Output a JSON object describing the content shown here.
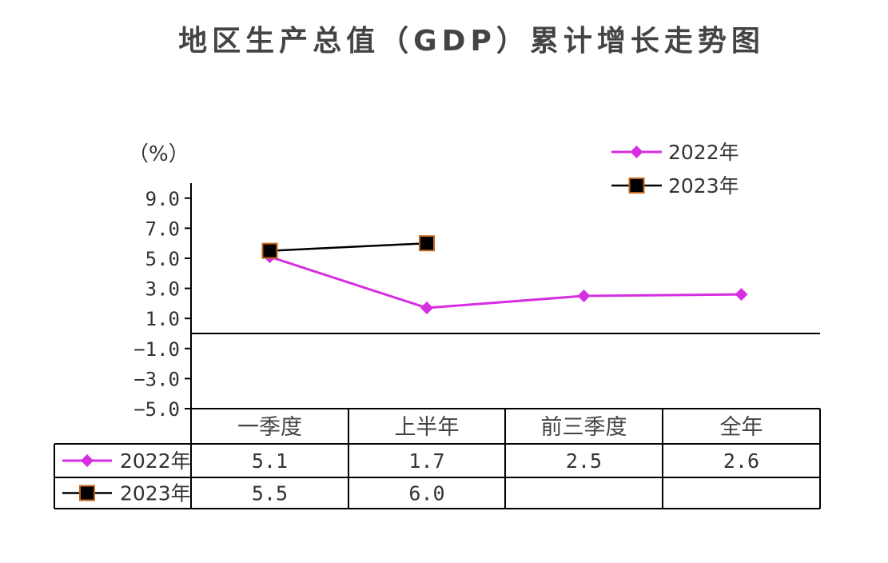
{
  "title": "地区生产总值（GDP）累计增长走势图",
  "unit_label": "（%）",
  "colors": {
    "s2022": "#d62ee0",
    "s2023": "#000000",
    "marker_edge": "#c0631c"
  },
  "chart_data": {
    "type": "line",
    "categories": [
      "一季度",
      "上半年",
      "前三季度",
      "全年"
    ],
    "y_ticks": [
      "9.0",
      "7.0",
      "5.0",
      "3.0",
      "1.0",
      "−1.0",
      "−3.0",
      "−5.0"
    ],
    "ylim": [
      -5,
      10
    ],
    "legend_position": "top-right",
    "series": [
      {
        "name": "2022年",
        "values": [
          5.1,
          1.7,
          2.5,
          2.6
        ],
        "labels": [
          "5.1",
          "1.7",
          "2.5",
          "2.6"
        ],
        "marker": "diamond"
      },
      {
        "name": "2023年",
        "values": [
          5.5,
          6.0,
          null,
          null
        ],
        "labels": [
          "5.5",
          "6.0",
          "",
          ""
        ],
        "marker": "square"
      }
    ]
  }
}
